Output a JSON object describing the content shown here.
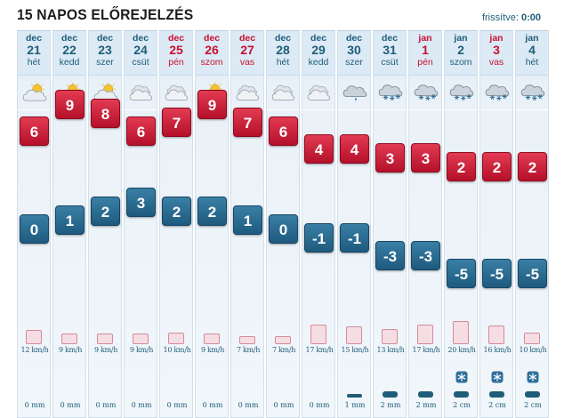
{
  "header": {
    "title": "15 NAPOS ELŐREJELZÉS",
    "updated_label": "frissítve:",
    "updated_time": "0:00"
  },
  "colors": {
    "max_temp": "#c8102e",
    "min_temp": "#1e5a7e",
    "holiday_text": "#c8102e",
    "normal_text": "#1f5d79",
    "wind_bar": "#f6dde3"
  },
  "days": [
    {
      "month": "dec",
      "date": "21",
      "weekday": "hét",
      "red": false,
      "icon": "partly-cloudy-icon",
      "max": "6",
      "min": "0",
      "wind": "12 km/h",
      "wind_kmh": 12,
      "precip": "0 mm",
      "precip_mm": 0,
      "snow": false
    },
    {
      "month": "dec",
      "date": "22",
      "weekday": "kedd",
      "red": false,
      "icon": "partly-cloudy-icon",
      "max": "9",
      "min": "1",
      "wind": "9 km/h",
      "wind_kmh": 9,
      "precip": "0 mm",
      "precip_mm": 0,
      "snow": false
    },
    {
      "month": "dec",
      "date": "23",
      "weekday": "szer",
      "red": false,
      "icon": "partly-cloudy-icon",
      "max": "8",
      "min": "2",
      "wind": "9 km/h",
      "wind_kmh": 9,
      "precip": "0 mm",
      "precip_mm": 0,
      "snow": false
    },
    {
      "month": "dec",
      "date": "24",
      "weekday": "csüt",
      "red": false,
      "icon": "cloudy-icon",
      "max": "6",
      "min": "3",
      "wind": "9 km/h",
      "wind_kmh": 9,
      "precip": "0 mm",
      "precip_mm": 0,
      "snow": false
    },
    {
      "month": "dec",
      "date": "25",
      "weekday": "pén",
      "red": true,
      "icon": "cloudy-icon",
      "max": "7",
      "min": "2",
      "wind": "10 km/h",
      "wind_kmh": 10,
      "precip": "0 mm",
      "precip_mm": 0,
      "snow": false
    },
    {
      "month": "dec",
      "date": "26",
      "weekday": "szom",
      "red": true,
      "icon": "partly-cloudy-icon",
      "max": "9",
      "min": "2",
      "wind": "9 km/h",
      "wind_kmh": 9,
      "precip": "0 mm",
      "precip_mm": 0,
      "snow": false
    },
    {
      "month": "dec",
      "date": "27",
      "weekday": "vas",
      "red": true,
      "icon": "cloudy-icon",
      "max": "7",
      "min": "1",
      "wind": "7 km/h",
      "wind_kmh": 7,
      "precip": "0 mm",
      "precip_mm": 0,
      "snow": false
    },
    {
      "month": "dec",
      "date": "28",
      "weekday": "hét",
      "red": false,
      "icon": "cloudy-icon",
      "max": "6",
      "min": "0",
      "wind": "7 km/h",
      "wind_kmh": 7,
      "precip": "0 mm",
      "precip_mm": 0,
      "snow": false
    },
    {
      "month": "dec",
      "date": "29",
      "weekday": "kedd",
      "red": false,
      "icon": "cloudy-icon",
      "max": "4",
      "min": "-1",
      "wind": "17 km/h",
      "wind_kmh": 17,
      "precip": "0 mm",
      "precip_mm": 0,
      "snow": false
    },
    {
      "month": "dec",
      "date": "30",
      "weekday": "szer",
      "red": false,
      "icon": "rain-cloud-icon",
      "max": "4",
      "min": "-1",
      "wind": "15 km/h",
      "wind_kmh": 15,
      "precip": "1 mm",
      "precip_mm": 1,
      "snow": false
    },
    {
      "month": "dec",
      "date": "31",
      "weekday": "csüt",
      "red": false,
      "icon": "snow-cloud-icon",
      "max": "3",
      "min": "-3",
      "wind": "13 km/h",
      "wind_kmh": 13,
      "precip": "2 mm",
      "precip_mm": 2,
      "snow": false
    },
    {
      "month": "jan",
      "date": "1",
      "weekday": "pén",
      "red": true,
      "icon": "snow-cloud-icon",
      "max": "3",
      "min": "-3",
      "wind": "17 km/h",
      "wind_kmh": 17,
      "precip": "2 mm",
      "precip_mm": 2,
      "snow": false
    },
    {
      "month": "jan",
      "date": "2",
      "weekday": "szom",
      "red": false,
      "icon": "snow-cloud-icon",
      "max": "2",
      "min": "-5",
      "wind": "20 km/h",
      "wind_kmh": 20,
      "precip": "2 cm",
      "precip_mm": 2,
      "snow": true
    },
    {
      "month": "jan",
      "date": "3",
      "weekday": "vas",
      "red": true,
      "icon": "snow-cloud-icon",
      "max": "2",
      "min": "-5",
      "wind": "16 km/h",
      "wind_kmh": 16,
      "precip": "2 cm",
      "precip_mm": 2,
      "snow": true
    },
    {
      "month": "jan",
      "date": "4",
      "weekday": "hét",
      "red": false,
      "icon": "snow-cloud-icon",
      "max": "2",
      "min": "-5",
      "wind": "10 km/h",
      "wind_kmh": 10,
      "precip": "2 cm",
      "precip_mm": 2,
      "snow": true
    }
  ]
}
